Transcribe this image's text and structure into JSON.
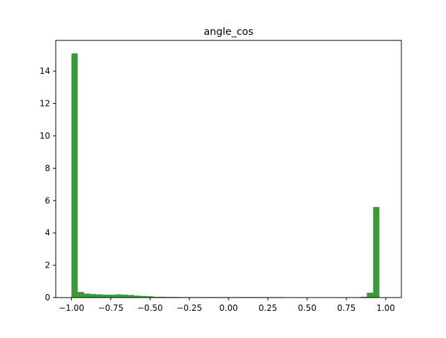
{
  "chart_data": {
    "type": "bar",
    "title": "angle_cos",
    "xlabel": "",
    "ylabel": "",
    "xlim": [
      -1.1,
      1.1
    ],
    "ylim": [
      0,
      15.9
    ],
    "bin_width": 0.04,
    "bins_start": -1.0,
    "bar_color": "#3a9a3a",
    "grid": false,
    "x_ticks": [
      -1.0,
      -0.75,
      -0.5,
      -0.25,
      0.0,
      0.25,
      0.5,
      0.75,
      1.0
    ],
    "x_tick_labels": [
      "−1.00",
      "−0.75",
      "−0.50",
      "−0.25",
      "0.00",
      "0.25",
      "0.50",
      "0.75",
      "1.00"
    ],
    "y_ticks": [
      0,
      2,
      4,
      6,
      8,
      10,
      12,
      14
    ],
    "y_tick_labels": [
      "0",
      "2",
      "4",
      "6",
      "8",
      "10",
      "12",
      "14"
    ],
    "values": [
      15.1,
      0.35,
      0.25,
      0.22,
      0.2,
      0.18,
      0.18,
      0.2,
      0.18,
      0.16,
      0.12,
      0.1,
      0.08,
      0.05,
      0.05,
      0.04,
      0.04,
      0.03,
      0.03,
      0.03,
      0.03,
      0.03,
      0.03,
      0.03,
      0.03,
      0.03,
      0.03,
      0.03,
      0.03,
      0.03,
      0.03,
      0.03,
      0.03,
      0.03,
      0.02,
      0.02,
      0.0,
      0.0,
      0.0,
      0.0,
      0.0,
      0.0,
      0.0,
      0.0,
      0.0,
      0.0,
      0.05,
      0.3,
      5.6
    ]
  }
}
